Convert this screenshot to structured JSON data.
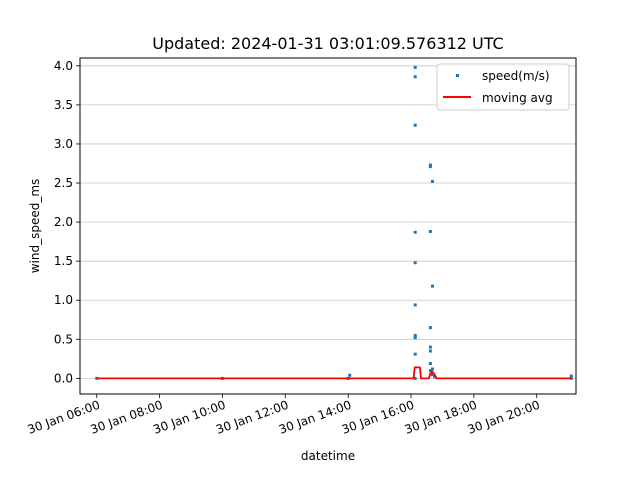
{
  "chart_data": {
    "type": "scatter",
    "title": "Updated: 2024-01-31 03:01:09.576312 UTC",
    "xlabel": "datetime",
    "ylabel": "wind_speed_ms",
    "xlim": [
      "2024-01-30 05:28",
      "2024-01-30 21:15"
    ],
    "ylim": [
      -0.2,
      4.1
    ],
    "yticks": [
      0.0,
      0.5,
      1.0,
      1.5,
      2.0,
      2.5,
      3.0,
      3.5,
      4.0
    ],
    "ytick_labels": [
      "0.0",
      "0.5",
      "1.0",
      "1.5",
      "2.0",
      "2.5",
      "3.0",
      "3.5",
      "4.0"
    ],
    "xticks": [
      "2024-01-30 06:00",
      "2024-01-30 08:00",
      "2024-01-30 10:00",
      "2024-01-30 12:00",
      "2024-01-30 14:00",
      "2024-01-30 16:00",
      "2024-01-30 18:00",
      "2024-01-30 20:00"
    ],
    "xtick_labels": [
      "30 Jan 06:00",
      "30 Jan 08:00",
      "30 Jan 10:00",
      "30 Jan 12:00",
      "30 Jan 14:00",
      "30 Jan 16:00",
      "30 Jan 18:00",
      "30 Jan 20:00"
    ],
    "grid": "horizontal",
    "legend_position": "top-right",
    "series": [
      {
        "name": "speed(m/s)",
        "kind": "scatter",
        "color": "#1f77b4",
        "points": [
          [
            "2024-01-30 06:00",
            0.0
          ],
          [
            "2024-01-30 10:00",
            0.0
          ],
          [
            "2024-01-30 14:00",
            0.0
          ],
          [
            "2024-01-30 14:03",
            0.04
          ],
          [
            "2024-01-30 16:08",
            3.98
          ],
          [
            "2024-01-30 16:08",
            3.86
          ],
          [
            "2024-01-30 16:08",
            3.24
          ],
          [
            "2024-01-30 16:08",
            1.87
          ],
          [
            "2024-01-30 16:08",
            1.48
          ],
          [
            "2024-01-30 16:08",
            0.94
          ],
          [
            "2024-01-30 16:08",
            0.55
          ],
          [
            "2024-01-30 16:08",
            0.52
          ],
          [
            "2024-01-30 16:08",
            0.31
          ],
          [
            "2024-01-30 16:08",
            0.0
          ],
          [
            "2024-01-30 16:37",
            2.73
          ],
          [
            "2024-01-30 16:37",
            2.71
          ],
          [
            "2024-01-30 16:37",
            1.88
          ],
          [
            "2024-01-30 16:37",
            0.65
          ],
          [
            "2024-01-30 16:37",
            0.4
          ],
          [
            "2024-01-30 16:37",
            0.35
          ],
          [
            "2024-01-30 16:37",
            0.19
          ],
          [
            "2024-01-30 16:37",
            0.1
          ],
          [
            "2024-01-30 16:41",
            2.52
          ],
          [
            "2024-01-30 16:41",
            1.18
          ],
          [
            "2024-01-30 16:41",
            0.12
          ],
          [
            "2024-01-30 16:41",
            0.05
          ],
          [
            "2024-01-30 16:45",
            0.02
          ],
          [
            "2024-01-30 21:06",
            0.03
          ],
          [
            "2024-01-30 21:06",
            0.0
          ]
        ]
      },
      {
        "name": "moving avg",
        "kind": "line",
        "color": "#ff0000",
        "points": [
          [
            "2024-01-30 06:00",
            0.0
          ],
          [
            "2024-01-30 16:05",
            0.0
          ],
          [
            "2024-01-30 16:07",
            0.14
          ],
          [
            "2024-01-30 16:17",
            0.14
          ],
          [
            "2024-01-30 16:19",
            0.0
          ],
          [
            "2024-01-30 16:34",
            0.0
          ],
          [
            "2024-01-30 16:37",
            0.06
          ],
          [
            "2024-01-30 16:40",
            0.09
          ],
          [
            "2024-01-30 16:44",
            0.06
          ],
          [
            "2024-01-30 16:49",
            0.0
          ],
          [
            "2024-01-30 21:06",
            0.0
          ]
        ]
      }
    ]
  }
}
